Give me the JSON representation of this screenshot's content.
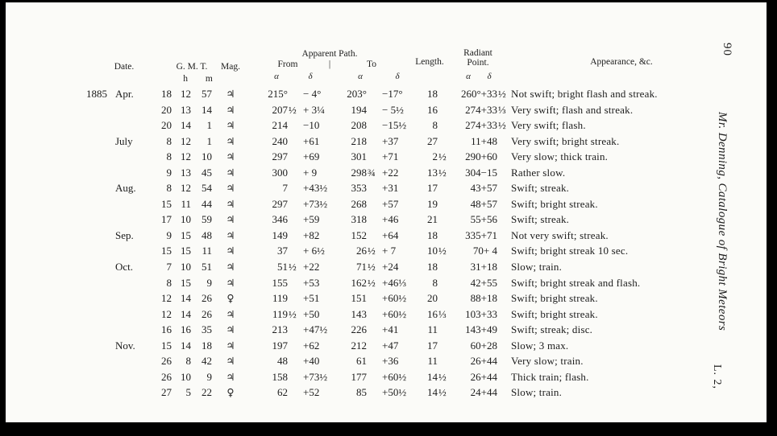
{
  "margin": {
    "page_number": "90",
    "side_title": "Mr. Denning, Catalogue of Bright Meteors",
    "signature": "L. 2,"
  },
  "table": {
    "headers": {
      "date": "Date.",
      "gmt": "G. M. T.",
      "hour_unit": "h",
      "minute_unit": "m",
      "mag": "Mag.",
      "apparent_path": "Apparent Path.",
      "from": "From",
      "divider": "|",
      "to": "To",
      "alpha": "α",
      "delta": "δ",
      "length": "Length.",
      "radiant_line1": "Radiant",
      "radiant_line2": "Point.",
      "appearance": "Appearance, &c."
    },
    "year": "1885",
    "rows": [
      {
        "month": "Apr.",
        "day": "18",
        "h": "12",
        "m": "57",
        "mag": "♃",
        "from_a": "215°",
        "from_fr": "",
        "from_d": "− 4°",
        "to_a": "203°",
        "to_fr": "",
        "to_d": "−17°",
        "len": "18",
        "len_fr": "",
        "rad": "260°+33",
        "rad_fr": "½",
        "app": "Not swift; bright flash and streak."
      },
      {
        "month": "",
        "day": "20",
        "h": "13",
        "m": "14",
        "mag": "♃",
        "from_a": "207",
        "from_fr": "½",
        "from_d": "+ 3¼",
        "to_a": "194",
        "to_fr": "",
        "to_d": "− 5½",
        "len": "16",
        "len_fr": "",
        "rad": "274+33",
        "rad_fr": "⅓",
        "app": "Very swift; flash and streak."
      },
      {
        "month": "",
        "day": "20",
        "h": "14",
        "m": "1",
        "mag": "♃",
        "from_a": "214",
        "from_fr": "",
        "from_d": "−10",
        "to_a": "208",
        "to_fr": "",
        "to_d": "−15½",
        "len": "8",
        "len_fr": "",
        "rad": "274+33",
        "rad_fr": "½",
        "app": "Very swift; flash."
      },
      {
        "month": "July",
        "day": "8",
        "h": "12",
        "m": "1",
        "mag": "♃",
        "from_a": "240",
        "from_fr": "",
        "from_d": "+61",
        "to_a": "218",
        "to_fr": "",
        "to_d": "+37",
        "len": "27",
        "len_fr": "",
        "rad": "11+48",
        "rad_fr": "",
        "app": "Very swift; bright streak."
      },
      {
        "month": "",
        "day": "8",
        "h": "12",
        "m": "10",
        "mag": "♃",
        "from_a": "297",
        "from_fr": "",
        "from_d": "+69",
        "to_a": "301",
        "to_fr": "",
        "to_d": "+71",
        "len": "2",
        "len_fr": "½",
        "rad": "290+60",
        "rad_fr": "",
        "app": "Very slow; thick train."
      },
      {
        "month": "",
        "day": "9",
        "h": "13",
        "m": "45",
        "mag": "♃",
        "from_a": "300",
        "from_fr": "",
        "from_d": "+ 9",
        "to_a": "298",
        "to_fr": "¾",
        "to_d": "+22",
        "len": "13",
        "len_fr": "½",
        "rad": "304−15",
        "rad_fr": "",
        "app": "Rather slow."
      },
      {
        "month": "Aug.",
        "day": "8",
        "h": "12",
        "m": "54",
        "mag": "♃",
        "from_a": "7",
        "from_fr": "",
        "from_d": "+43½",
        "to_a": "353",
        "to_fr": "",
        "to_d": "+31",
        "len": "17",
        "len_fr": "",
        "rad": "43+57",
        "rad_fr": "",
        "app": "Swift; streak."
      },
      {
        "month": "",
        "day": "15",
        "h": "11",
        "m": "44",
        "mag": "♃",
        "from_a": "297",
        "from_fr": "",
        "from_d": "+73½",
        "to_a": "268",
        "to_fr": "",
        "to_d": "+57",
        "len": "19",
        "len_fr": "",
        "rad": "48+57",
        "rad_fr": "",
        "app": "Swift; bright streak."
      },
      {
        "month": "",
        "day": "17",
        "h": "10",
        "m": "59",
        "mag": "♃",
        "from_a": "346",
        "from_fr": "",
        "from_d": "+59",
        "to_a": "318",
        "to_fr": "",
        "to_d": "+46",
        "len": "21",
        "len_fr": "",
        "rad": "55+56",
        "rad_fr": "",
        "app": "Swift; streak."
      },
      {
        "month": "Sep.",
        "day": "9",
        "h": "15",
        "m": "48",
        "mag": "♃",
        "from_a": "149",
        "from_fr": "",
        "from_d": "+82",
        "to_a": "152",
        "to_fr": "",
        "to_d": "+64",
        "len": "18",
        "len_fr": "",
        "rad": "335+71",
        "rad_fr": "",
        "app": "Not very swift; streak."
      },
      {
        "month": "",
        "day": "15",
        "h": "15",
        "m": "11",
        "mag": "♃",
        "from_a": "37",
        "from_fr": "",
        "from_d": "+ 6½",
        "to_a": "26",
        "to_fr": "½",
        "to_d": "+ 7",
        "len": "10",
        "len_fr": "½",
        "rad": "70+ 4",
        "rad_fr": "",
        "app": "Swift; bright streak 10 sec."
      },
      {
        "month": "Oct.",
        "day": "7",
        "h": "10",
        "m": "51",
        "mag": "♃",
        "from_a": "51",
        "from_fr": "½",
        "from_d": "+22",
        "to_a": "71",
        "to_fr": "½",
        "to_d": "+24",
        "len": "18",
        "len_fr": "",
        "rad": "31+18",
        "rad_fr": "",
        "app": "Slow; train."
      },
      {
        "month": "",
        "day": "8",
        "h": "15",
        "m": "9",
        "mag": "♃",
        "from_a": "155",
        "from_fr": "",
        "from_d": "+53",
        "to_a": "162",
        "to_fr": "½",
        "to_d": "+46⅓",
        "len": "8",
        "len_fr": "",
        "rad": "42+55",
        "rad_fr": "",
        "app": "Swift; bright streak and flash."
      },
      {
        "month": "",
        "day": "12",
        "h": "14",
        "m": "26",
        "mag": "♀",
        "from_a": "119",
        "from_fr": "",
        "from_d": "+51",
        "to_a": "151",
        "to_fr": "",
        "to_d": "+60½",
        "len": "20",
        "len_fr": "",
        "rad": "88+18",
        "rad_fr": "",
        "app": "Swift; bright streak."
      },
      {
        "month": "",
        "day": "12",
        "h": "14",
        "m": "26",
        "mag": "♃",
        "from_a": "119",
        "from_fr": "½",
        "from_d": "+50",
        "to_a": "143",
        "to_fr": "",
        "to_d": "+60½",
        "len": "16",
        "len_fr": "⅓",
        "rad": "103+33",
        "rad_fr": "",
        "app": "Swift; bright streak."
      },
      {
        "month": "",
        "day": "16",
        "h": "16",
        "m": "35",
        "mag": "♃",
        "from_a": "213",
        "from_fr": "",
        "from_d": "+47½",
        "to_a": "226",
        "to_fr": "",
        "to_d": "+41",
        "len": "11",
        "len_fr": "",
        "rad": "143+49",
        "rad_fr": "",
        "app": "Swift; streak; disc."
      },
      {
        "month": "Nov.",
        "day": "15",
        "h": "14",
        "m": "18",
        "mag": "♃",
        "from_a": "197",
        "from_fr": "",
        "from_d": "+62",
        "to_a": "212",
        "to_fr": "",
        "to_d": "+47",
        "len": "17",
        "len_fr": "",
        "rad": "60+28",
        "rad_fr": "",
        "app": "Slow; 3 max."
      },
      {
        "month": "",
        "day": "26",
        "h": "8",
        "m": "42",
        "mag": "♃",
        "from_a": "48",
        "from_fr": "",
        "from_d": "+40",
        "to_a": "61",
        "to_fr": "",
        "to_d": "+36",
        "len": "11",
        "len_fr": "",
        "rad": "26+44",
        "rad_fr": "",
        "app": "Very slow; train."
      },
      {
        "month": "",
        "day": "26",
        "h": "10",
        "m": "9",
        "mag": "♃",
        "from_a": "158",
        "from_fr": "",
        "from_d": "+73½",
        "to_a": "177",
        "to_fr": "",
        "to_d": "+60½",
        "len": "14",
        "len_fr": "½",
        "rad": "26+44",
        "rad_fr": "",
        "app": "Thick train; flash."
      },
      {
        "month": "",
        "day": "27",
        "h": "5",
        "m": "22",
        "mag": "♀",
        "from_a": "62",
        "from_fr": "",
        "from_d": "+52",
        "to_a": "85",
        "to_fr": "",
        "to_d": "+50½",
        "len": "14",
        "len_fr": "½",
        "rad": "24+44",
        "rad_fr": "",
        "app": "Slow; train."
      }
    ]
  }
}
